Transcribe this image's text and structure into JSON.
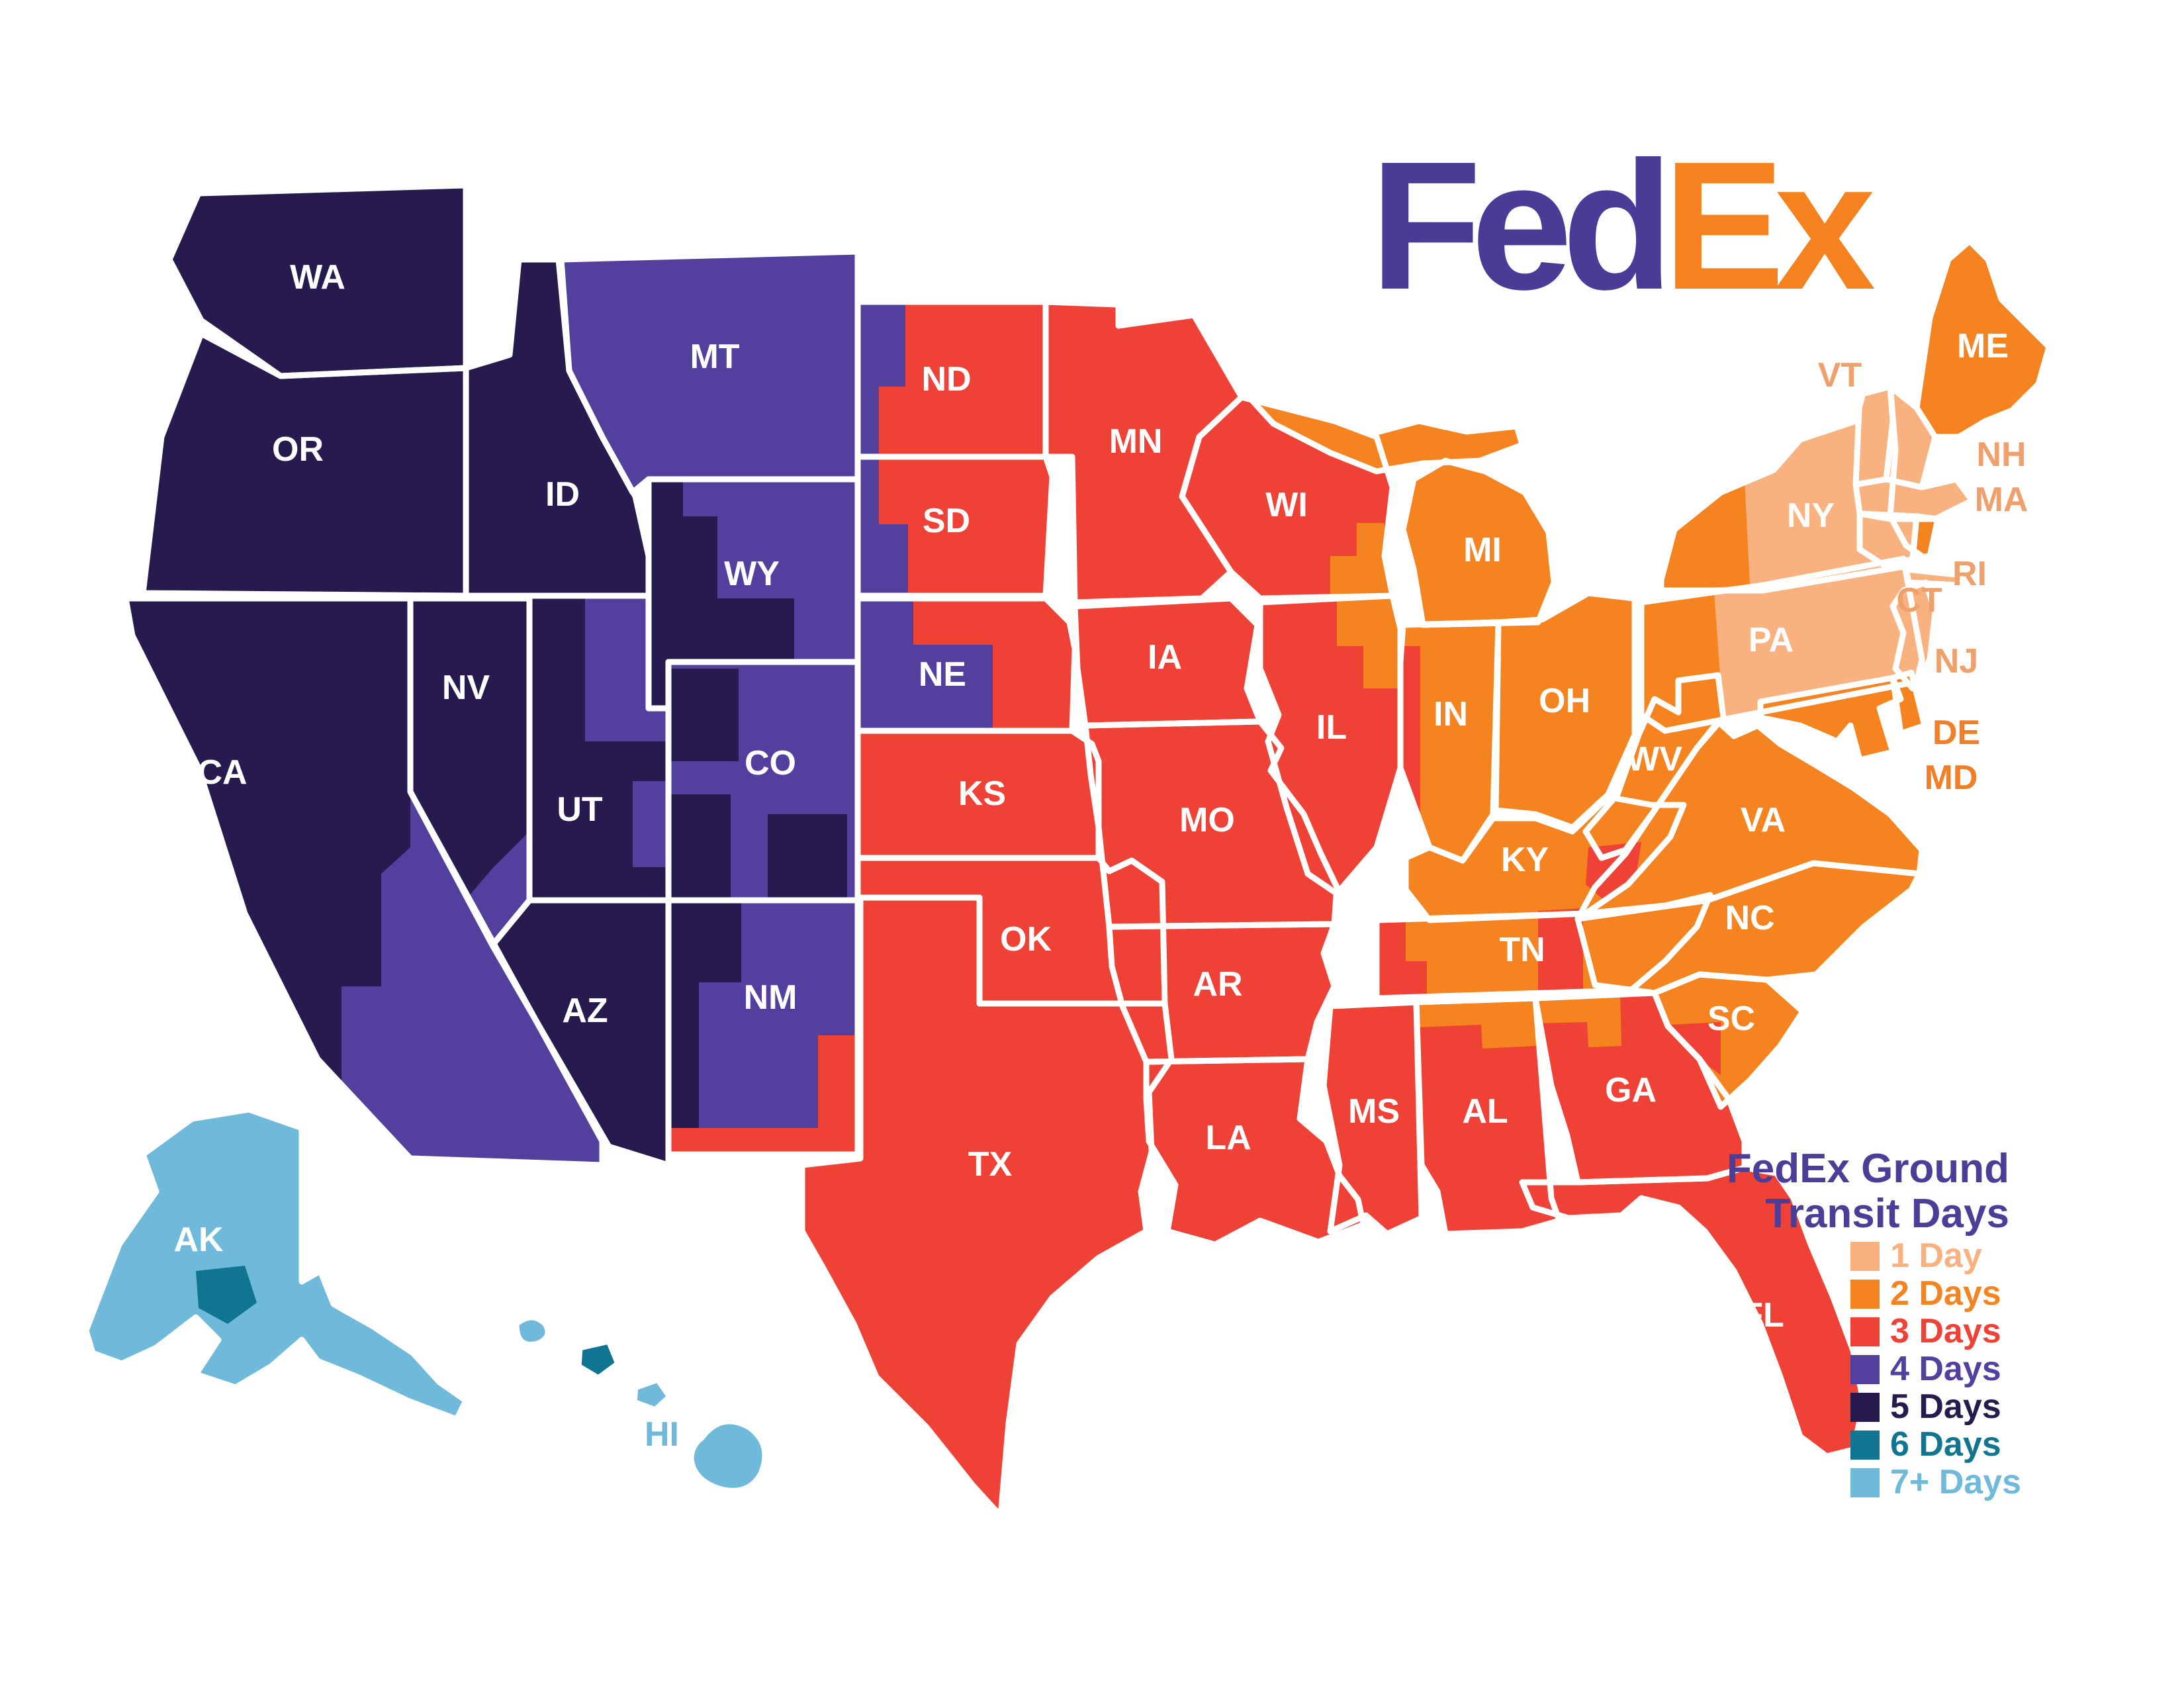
{
  "logo": {
    "part1": "Fed",
    "part2": "Ex"
  },
  "legend": {
    "title_line1": "FedEx Ground",
    "title_line2": "Transit Days",
    "items": [
      {
        "key": "1",
        "label": "1 Day"
      },
      {
        "key": "2",
        "label": "2 Days"
      },
      {
        "key": "3",
        "label": "3 Days"
      },
      {
        "key": "4",
        "label": "4 Days"
      },
      {
        "key": "5",
        "label": "5 Days"
      },
      {
        "key": "6",
        "label": "6 Days"
      },
      {
        "key": "7",
        "label": "7+ Days"
      }
    ]
  },
  "colors": {
    "days": {
      "1": "#F9B27F",
      "2": "#F5831F",
      "3": "#EF4136",
      "4": "#53409E",
      "5": "#261A4E",
      "6": "#0F7590",
      "7": "#6FBADB"
    },
    "labels": {
      "white": "#FFFFFF",
      "peach": "#EFA06B",
      "orange": "#F07F28",
      "blue": "#6FBADB"
    },
    "logo_purple": "#4B3A96",
    "logo_orange": "#F5821F",
    "title_purple": "#4B3E99",
    "border": "#FFFFFF"
  },
  "states": [
    {
      "id": "WA",
      "label": "WA",
      "days": "5",
      "label_style": "white"
    },
    {
      "id": "OR",
      "label": "OR",
      "days": "5",
      "label_style": "white"
    },
    {
      "id": "ID",
      "label": "ID",
      "days": "5",
      "label_style": "white"
    },
    {
      "id": "MT",
      "label": "MT",
      "days": "4",
      "label_style": "white"
    },
    {
      "id": "WY",
      "label": "WY",
      "days": "4",
      "label_style": "white"
    },
    {
      "id": "NV",
      "label": "NV",
      "days": "5",
      "label_style": "white"
    },
    {
      "id": "CA",
      "label": "CA",
      "days": "5",
      "label_style": "white"
    },
    {
      "id": "UT",
      "label": "UT",
      "days": "5",
      "label_style": "white"
    },
    {
      "id": "CO",
      "label": "CO",
      "days": "4",
      "label_style": "white"
    },
    {
      "id": "AZ",
      "label": "AZ",
      "days": "5",
      "label_style": "white"
    },
    {
      "id": "NM",
      "label": "NM",
      "days": "4",
      "label_style": "white"
    },
    {
      "id": "ND",
      "label": "ND",
      "days": "3",
      "label_style": "white"
    },
    {
      "id": "SD",
      "label": "SD",
      "days": "3",
      "label_style": "white"
    },
    {
      "id": "NE",
      "label": "NE",
      "days": "3",
      "label_style": "white"
    },
    {
      "id": "KS",
      "label": "KS",
      "days": "3",
      "label_style": "white"
    },
    {
      "id": "OK",
      "label": "OK",
      "days": "3",
      "label_style": "white"
    },
    {
      "id": "TX",
      "label": "TX",
      "days": "3",
      "label_style": "white"
    },
    {
      "id": "MN",
      "label": "MN",
      "days": "3",
      "label_style": "white"
    },
    {
      "id": "IA",
      "label": "IA",
      "days": "3",
      "label_style": "white"
    },
    {
      "id": "MO",
      "label": "MO",
      "days": "3",
      "label_style": "white"
    },
    {
      "id": "AR",
      "label": "AR",
      "days": "3",
      "label_style": "white"
    },
    {
      "id": "LA",
      "label": "LA",
      "days": "3",
      "label_style": "white"
    },
    {
      "id": "WI",
      "label": "WI",
      "days": "3",
      "label_style": "white"
    },
    {
      "id": "IL",
      "label": "IL",
      "days": "3",
      "label_style": "white"
    },
    {
      "id": "MI",
      "label": "MI",
      "days": "2",
      "label_style": "white"
    },
    {
      "id": "IN",
      "label": "IN",
      "days": "2",
      "label_style": "white"
    },
    {
      "id": "OH",
      "label": "OH",
      "days": "2",
      "label_style": "white"
    },
    {
      "id": "KY",
      "label": "KY",
      "days": "2",
      "label_style": "white"
    },
    {
      "id": "TN",
      "label": "TN",
      "days": "2",
      "label_style": "white"
    },
    {
      "id": "MS",
      "label": "MS",
      "days": "3",
      "label_style": "white"
    },
    {
      "id": "AL",
      "label": "AL",
      "days": "3",
      "label_style": "white"
    },
    {
      "id": "GA",
      "label": "GA",
      "days": "3",
      "label_style": "white"
    },
    {
      "id": "FL",
      "label": "FL",
      "days": "3",
      "label_style": "white"
    },
    {
      "id": "SC",
      "label": "SC",
      "days": "2",
      "label_style": "white"
    },
    {
      "id": "NC",
      "label": "NC",
      "days": "2",
      "label_style": "white"
    },
    {
      "id": "VA",
      "label": "VA",
      "days": "2",
      "label_style": "white"
    },
    {
      "id": "WV",
      "label": "WV",
      "days": "2",
      "label_style": "white"
    },
    {
      "id": "PA",
      "label": "PA",
      "days": "1",
      "label_style": "white"
    },
    {
      "id": "NY",
      "label": "NY",
      "days": "1",
      "label_style": "white"
    },
    {
      "id": "ME",
      "label": "ME",
      "days": "2",
      "label_style": "white"
    },
    {
      "id": "VT",
      "label": "VT",
      "days": "1",
      "label_style": "peach"
    },
    {
      "id": "NH",
      "label": "NH",
      "days": "1",
      "label_style": "peach"
    },
    {
      "id": "MA",
      "label": "MA",
      "days": "1",
      "label_style": "peach"
    },
    {
      "id": "CT",
      "label": "CT",
      "days": "1",
      "label_style": "peach"
    },
    {
      "id": "RI",
      "label": "RI",
      "days": "2",
      "label_style": "peach"
    },
    {
      "id": "NJ",
      "label": "NJ",
      "days": "1",
      "label_style": "peach"
    },
    {
      "id": "DE",
      "label": "DE",
      "days": "2",
      "label_style": "orange"
    },
    {
      "id": "MD",
      "label": "MD",
      "days": "2",
      "label_style": "orange"
    },
    {
      "id": "AK",
      "label": "AK",
      "days": "7",
      "label_style": "white"
    },
    {
      "id": "HI1",
      "label": "",
      "days": "7",
      "label_style": "white"
    },
    {
      "id": "HI2",
      "label": "",
      "days": "6",
      "label_style": "white"
    },
    {
      "id": "HI3",
      "label": "",
      "days": "7",
      "label_style": "white"
    },
    {
      "id": "HI4",
      "label": "HI",
      "days": "7",
      "label_style": "blue"
    }
  ],
  "patches": [
    {
      "id": "ny-west",
      "days": "2"
    },
    {
      "id": "pa-west",
      "days": "2"
    },
    {
      "id": "wi-se",
      "days": "2"
    },
    {
      "id": "il-ne",
      "days": "2"
    },
    {
      "id": "in-west",
      "days": "3"
    },
    {
      "id": "ky-se",
      "days": "3"
    },
    {
      "id": "tn-west",
      "days": "3"
    },
    {
      "id": "tn-east",
      "days": "3"
    },
    {
      "id": "al-north",
      "days": "2"
    },
    {
      "id": "ga-nw",
      "days": "2"
    },
    {
      "id": "sc-sw",
      "days": "3"
    },
    {
      "id": "nd-west",
      "days": "4"
    },
    {
      "id": "sd-west",
      "days": "4"
    },
    {
      "id": "ne-west",
      "days": "4"
    },
    {
      "id": "wy-dark",
      "days": "5"
    },
    {
      "id": "ut-ne",
      "days": "4"
    },
    {
      "id": "ut-east",
      "days": "4"
    },
    {
      "id": "co-w1",
      "days": "5"
    },
    {
      "id": "co-w2",
      "days": "5"
    },
    {
      "id": "co-s",
      "days": "5"
    },
    {
      "id": "nm-nw",
      "days": "5"
    },
    {
      "id": "nm-west",
      "days": "5"
    },
    {
      "id": "nm-south",
      "days": "3"
    },
    {
      "id": "nm-se",
      "days": "3"
    },
    {
      "id": "ca-se",
      "days": "4"
    },
    {
      "id": "nv-se",
      "days": "4"
    },
    {
      "id": "ak-anchorage",
      "days": "6"
    }
  ]
}
